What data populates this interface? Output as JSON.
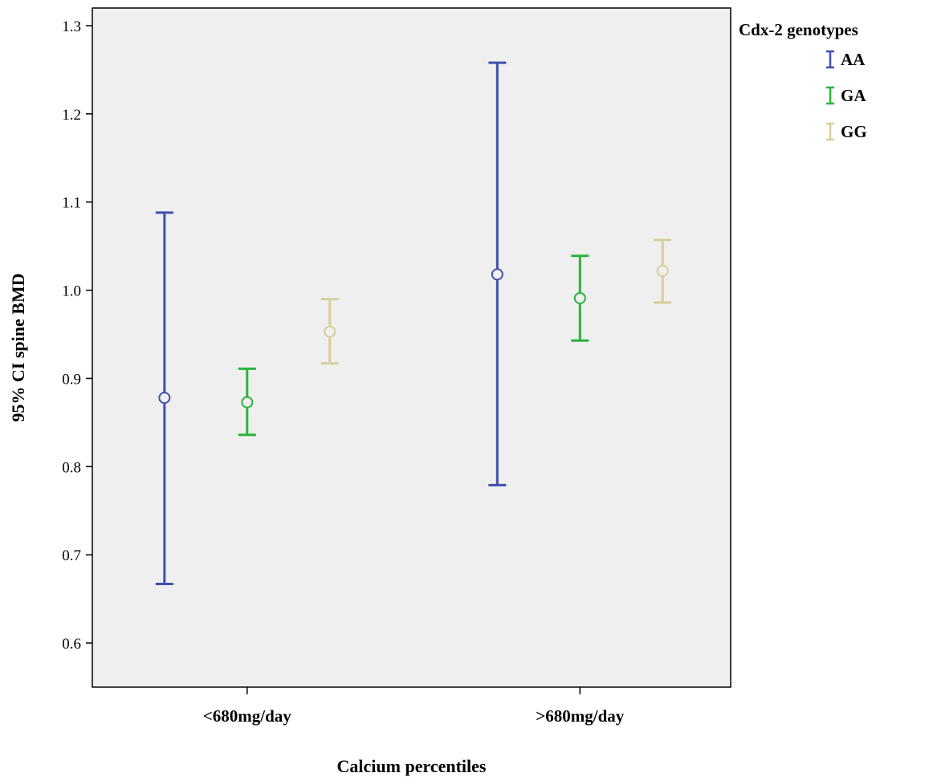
{
  "chart_data": {
    "type": "errorbar",
    "xlabel": "Calcium percentiles",
    "ylabel": "95% CI spine BMD",
    "categories": [
      "<680mg/day",
      ">680mg/day"
    ],
    "ylim": [
      0.55,
      1.32
    ],
    "yticks": [
      0.6,
      0.7,
      0.8,
      0.9,
      1.0,
      1.1,
      1.2,
      1.3
    ],
    "ytick_labels": [
      "0.6",
      "0.7",
      "0.8",
      "0.9",
      "1.0",
      "1.1",
      "1.2",
      "1.3"
    ],
    "legend": {
      "title": "Cdx-2 genotypes",
      "position": "top-right outside"
    },
    "grid": false,
    "plot_background": "#efefef",
    "series": [
      {
        "name": "AA",
        "color": "#3f4fae",
        "mean": [
          0.878,
          1.018
        ],
        "lower": [
          0.667,
          0.779
        ],
        "upper": [
          1.088,
          1.258
        ]
      },
      {
        "name": "GA",
        "color": "#2bb33a",
        "mean": [
          0.873,
          0.991
        ],
        "lower": [
          0.836,
          0.943
        ],
        "upper": [
          0.911,
          1.039
        ]
      },
      {
        "name": "GG",
        "color": "#d6cf9c",
        "mean": [
          0.953,
          1.022
        ],
        "lower": [
          0.917,
          0.986
        ],
        "upper": [
          0.99,
          1.057
        ]
      }
    ]
  }
}
